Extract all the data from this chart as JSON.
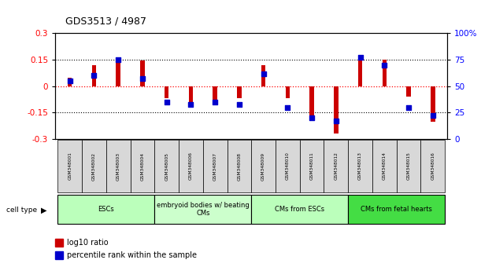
{
  "title": "GDS3513 / 4987",
  "samples": [
    "GSM348001",
    "GSM348002",
    "GSM348003",
    "GSM348004",
    "GSM348005",
    "GSM348006",
    "GSM348007",
    "GSM348008",
    "GSM348009",
    "GSM348010",
    "GSM348011",
    "GSM348012",
    "GSM348013",
    "GSM348014",
    "GSM348015",
    "GSM348016"
  ],
  "log10_ratio": [
    0.05,
    0.12,
    0.155,
    0.148,
    -0.07,
    -0.12,
    -0.1,
    -0.07,
    0.12,
    -0.07,
    -0.18,
    -0.27,
    0.165,
    0.15,
    -0.06,
    -0.2
  ],
  "percentile_rank": [
    55,
    60,
    75,
    57,
    35,
    33,
    35,
    33,
    62,
    30,
    20,
    17,
    77,
    70,
    30,
    22
  ],
  "cell_types": [
    {
      "label": "ESCs",
      "start": 0,
      "end": 3,
      "color": "#bbffbb"
    },
    {
      "label": "embryoid bodies w/ beating\nCMs",
      "start": 4,
      "end": 7,
      "color": "#ccffcc"
    },
    {
      "label": "CMs from ESCs",
      "start": 8,
      "end": 11,
      "color": "#bbffbb"
    },
    {
      "label": "CMs from fetal hearts",
      "start": 12,
      "end": 15,
      "color": "#44dd44"
    }
  ],
  "ylim_left": [
    -0.3,
    0.3
  ],
  "ylim_right": [
    0,
    100
  ],
  "yticks_left": [
    -0.3,
    -0.15,
    0,
    0.15,
    0.3
  ],
  "yticks_right": [
    0,
    25,
    50,
    75,
    100
  ],
  "bar_color": "#cc0000",
  "dot_color": "#0000cc",
  "bg_color": "#ffffff",
  "bar_width": 0.18
}
